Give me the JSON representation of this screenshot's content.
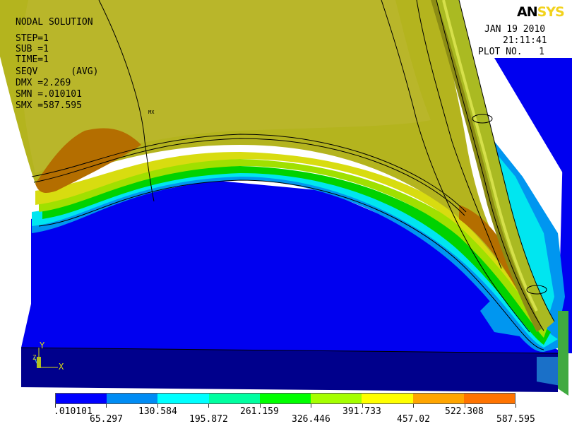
{
  "header": {
    "title": "NODAL SOLUTION",
    "lines": [
      "STEP=1",
      "SUB =1",
      "TIME=1",
      "SEQV      (AVG)",
      "DMX =2.269",
      "SMN =.010101",
      "SMX =587.595"
    ],
    "mx_marker": "MX"
  },
  "logo": {
    "part1": "AN",
    "part2": "SYS"
  },
  "info": {
    "date": "JAN 19 2010",
    "time": "21:11:41",
    "plot_no": "PLOT NO.   1"
  },
  "triad": {
    "y_label": "Y",
    "x_label": "X",
    "z_label": "Z"
  },
  "legend": {
    "colors": [
      "#0000ff",
      "#008cf4",
      "#00ffff",
      "#00ffa0",
      "#00ff00",
      "#a5ff00",
      "#ffff00",
      "#ffa500",
      "#ff7300",
      "#ff0000"
    ],
    "labels": [
      ".010101",
      "65.297",
      "130.584",
      "195.872",
      "261.159",
      "326.446",
      "391.733",
      "457.02",
      "522.308",
      "587.595"
    ]
  },
  "colors": {
    "ground_top": "#0000f0",
    "ground_side": "#00008c",
    "contour_light_blue": "#0096f0",
    "contour_cyan": "#00e6f0",
    "contour_green": "#00d200",
    "contour_yellow_green": "#a0e000",
    "surface_olive": "#b4b41e",
    "surface_dark_orange": "#b46e00"
  }
}
